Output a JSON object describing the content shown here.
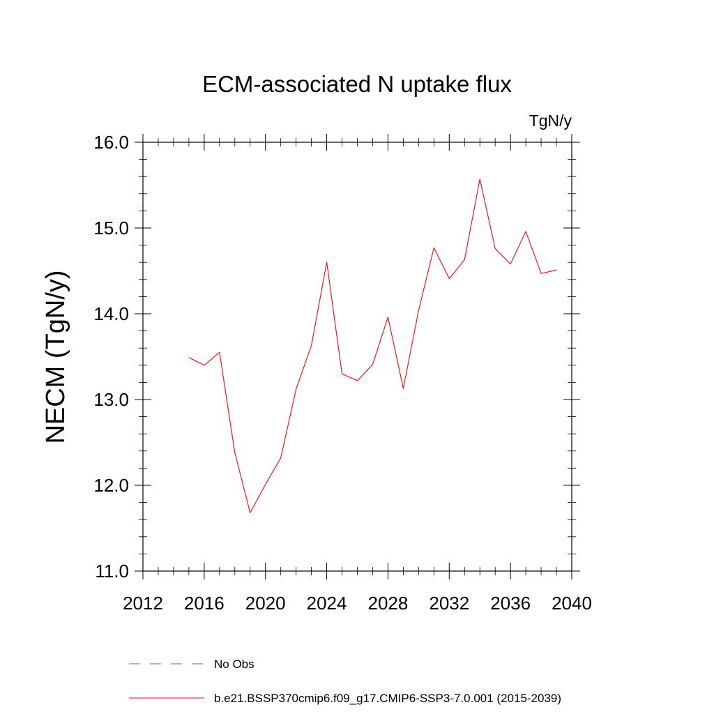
{
  "chart_data": {
    "type": "line",
    "title": "ECM-associated N uptake flux",
    "units": "TgN/y",
    "xlabel": "",
    "ylabel": "NECM  (TgN/y)",
    "xlim": [
      2012,
      2040
    ],
    "ylim": [
      11.0,
      16.0
    ],
    "xticks": [
      "2012",
      "2016",
      "2020",
      "2024",
      "2028",
      "2032",
      "2036",
      "2040"
    ],
    "yticks": [
      "11.0",
      "12.0",
      "13.0",
      "14.0",
      "15.0",
      "16.0"
    ],
    "grid": false,
    "legend_position": "bottom",
    "series": [
      {
        "name": "b.e21.BSSP370cmip6.f09_g17.CMIP6-SSP3-7.0.001 (2015-2039)",
        "color": "#ff0000",
        "style": "solid",
        "x": [
          2015,
          2016,
          2017,
          2018,
          2019,
          2020,
          2021,
          2022,
          2023,
          2024,
          2025,
          2026,
          2027,
          2028,
          2029,
          2030,
          2031,
          2032,
          2033,
          2034,
          2035,
          2036,
          2037,
          2038,
          2039
        ],
        "values": [
          13.49,
          13.4,
          13.55,
          12.38,
          11.68,
          12.01,
          12.32,
          13.12,
          13.63,
          14.6,
          13.3,
          13.22,
          13.41,
          13.96,
          13.13,
          14.04,
          14.77,
          14.41,
          14.63,
          15.57,
          14.76,
          14.58,
          14.96,
          14.47,
          14.51
        ]
      }
    ],
    "legend": [
      {
        "label": "No Obs",
        "color": "#6a5acd",
        "style": "dashed"
      },
      {
        "label": "b.e21.BSSP370cmip6.f09_g17.CMIP6-SSP3-7.0.001 (2015-2039)",
        "color": "#ff0000",
        "style": "solid"
      }
    ]
  }
}
